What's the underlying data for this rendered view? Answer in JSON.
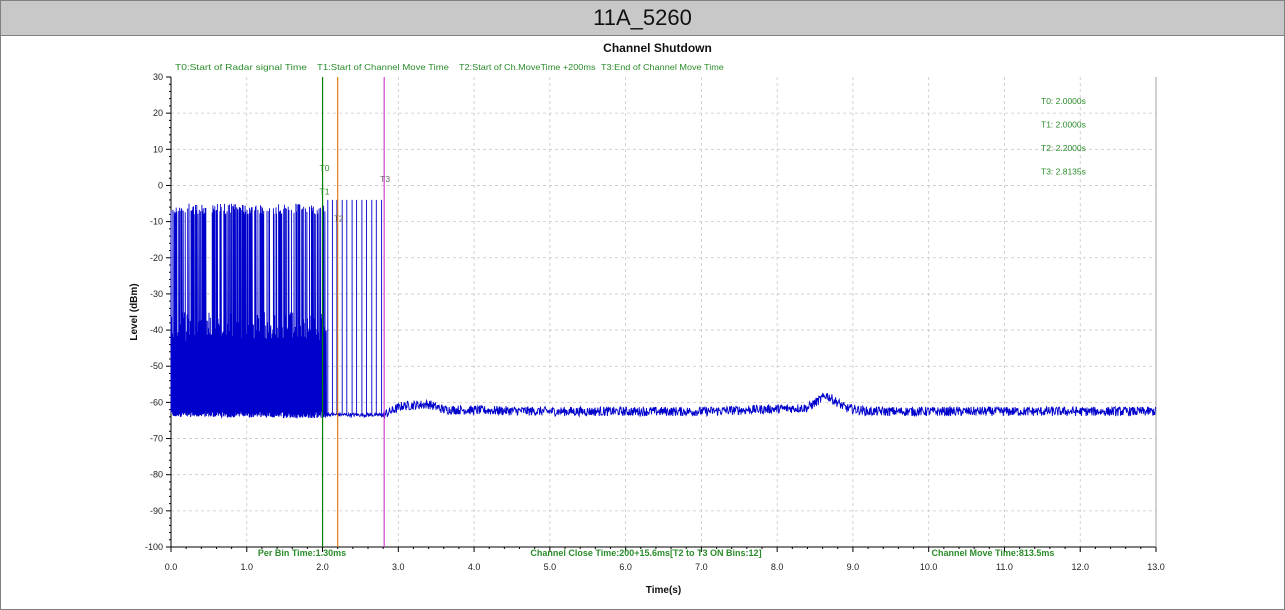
{
  "window": {
    "title": "11A_5260"
  },
  "colors": {
    "signal": "#0000cc",
    "t0": "#008000",
    "t1": "#008000",
    "t2": "#e07000",
    "t3": "#cc33cc",
    "annotation": "#2a8c2a",
    "grid": "#c8c8c8",
    "axis": "#000000"
  },
  "chart_data": {
    "type": "line",
    "title": "Channel Shutdown",
    "xlabel": "Time(s)",
    "ylabel": "Level (dBm)",
    "xlim": [
      0,
      13
    ],
    "ylim": [
      -100,
      30
    ],
    "grid": true,
    "x_ticks": [
      "0.0",
      "1.0",
      "2.0",
      "3.0",
      "4.0",
      "5.0",
      "6.0",
      "7.0",
      "8.0",
      "9.0",
      "10.0",
      "11.0",
      "12.0",
      "13.0"
    ],
    "y_ticks": [
      "30",
      "20",
      "10",
      "0",
      "-10",
      "-20",
      "-30",
      "-40",
      "-50",
      "-60",
      "-70",
      "-80",
      "-90",
      "-100"
    ],
    "legend_top": [
      "T0:Start of Radar signal Time",
      "T1:Start of Channel Move Time",
      "T2:Start of Ch.MoveTime +200ms",
      "T3:End of Channel Move Time"
    ],
    "markers": [
      {
        "name": "T0",
        "time": 2.0
      },
      {
        "name": "T1",
        "time": 2.0
      },
      {
        "name": "T2",
        "time": 2.2
      },
      {
        "name": "T3",
        "time": 2.8135
      }
    ],
    "marker_readouts": [
      "T0: 2.0000s",
      "T1: 2.0000s",
      "T2: 2.2000s",
      "T3: 2.8135s"
    ],
    "bottom_annotations": [
      "Per Bin Time:1.30ms",
      "Channel Close Time:200+15.6ms[T2 to T3 ON Bins:12]",
      "Channel Move Time:813.5ms"
    ],
    "series": [
      {
        "noise_floor_dbm": -63,
        "dense_bursts": {
          "start": 0.0,
          "end": 2.05,
          "peak_dbm": -5,
          "mid_dbm": -35
        },
        "sparse_pulses_dbm": -4,
        "sparse_pulse_times": [
          2.07,
          2.13,
          2.19,
          2.26,
          2.32,
          2.39,
          2.45,
          2.52,
          2.58,
          2.65,
          2.71,
          2.78
        ],
        "floor_segments": [
          {
            "x": 0.0,
            "y": -63
          },
          {
            "x": 2.8,
            "y": -63.5
          },
          {
            "x": 2.95,
            "y": -62
          },
          {
            "x": 3.05,
            "y": -61
          },
          {
            "x": 3.4,
            "y": -60.5
          },
          {
            "x": 3.6,
            "y": -62
          },
          {
            "x": 5.0,
            "y": -62.5
          },
          {
            "x": 7.0,
            "y": -62.5
          },
          {
            "x": 8.4,
            "y": -61.5
          },
          {
            "x": 8.65,
            "y": -58
          },
          {
            "x": 8.9,
            "y": -61.5
          },
          {
            "x": 9.2,
            "y": -62.5
          },
          {
            "x": 13.0,
            "y": -62.5
          }
        ]
      }
    ]
  }
}
